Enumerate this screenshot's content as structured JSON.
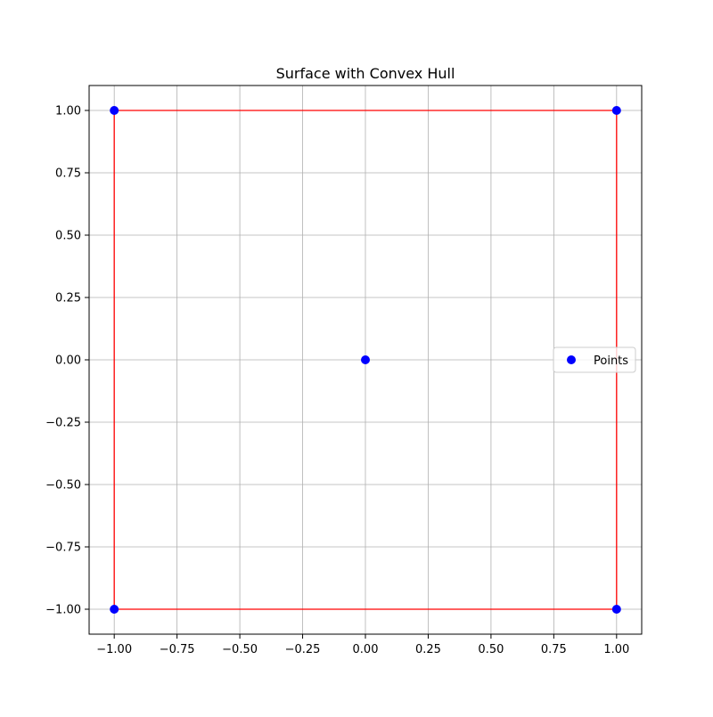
{
  "chart_data": {
    "type": "scatter",
    "title": "Surface with Convex Hull",
    "xlabel": "",
    "ylabel": "",
    "xlim": [
      -1.1,
      1.1
    ],
    "ylim": [
      -1.1,
      1.1
    ],
    "x_ticks": [
      -1.0,
      -0.75,
      -0.5,
      -0.25,
      0.0,
      0.25,
      0.5,
      0.75,
      1.0
    ],
    "y_ticks": [
      -1.0,
      -0.75,
      -0.5,
      -0.25,
      0.0,
      0.25,
      0.5,
      0.75,
      1.0
    ],
    "x_tick_labels": [
      "−1.00",
      "−0.75",
      "−0.50",
      "−0.25",
      "0.00",
      "0.25",
      "0.50",
      "0.75",
      "1.00"
    ],
    "y_tick_labels": [
      "−1.00",
      "−0.75",
      "−0.50",
      "−0.25",
      "0.00",
      "0.25",
      "0.50",
      "0.75",
      "1.00"
    ],
    "grid": true,
    "legend": {
      "placement": "center-right",
      "entries": [
        "Points"
      ]
    },
    "series": [
      {
        "name": "Points",
        "type": "scatter",
        "color": "#0000ff",
        "points": [
          {
            "x": -1.0,
            "y": 1.0
          },
          {
            "x": 1.0,
            "y": 1.0
          },
          {
            "x": 0.0,
            "y": 0.0
          },
          {
            "x": -1.0,
            "y": -1.0
          },
          {
            "x": 1.0,
            "y": -1.0
          }
        ]
      },
      {
        "type": "line",
        "color": "#ff0000",
        "points": [
          {
            "x": -1.0,
            "y": -1.0
          },
          {
            "x": 1.0,
            "y": -1.0
          },
          {
            "x": 1.0,
            "y": 1.0
          },
          {
            "x": -1.0,
            "y": 1.0
          },
          {
            "x": -1.0,
            "y": -1.0
          }
        ]
      }
    ],
    "colors": {
      "grid": "#b0b0b0",
      "axes": "#000000",
      "background": "#ffffff"
    }
  }
}
